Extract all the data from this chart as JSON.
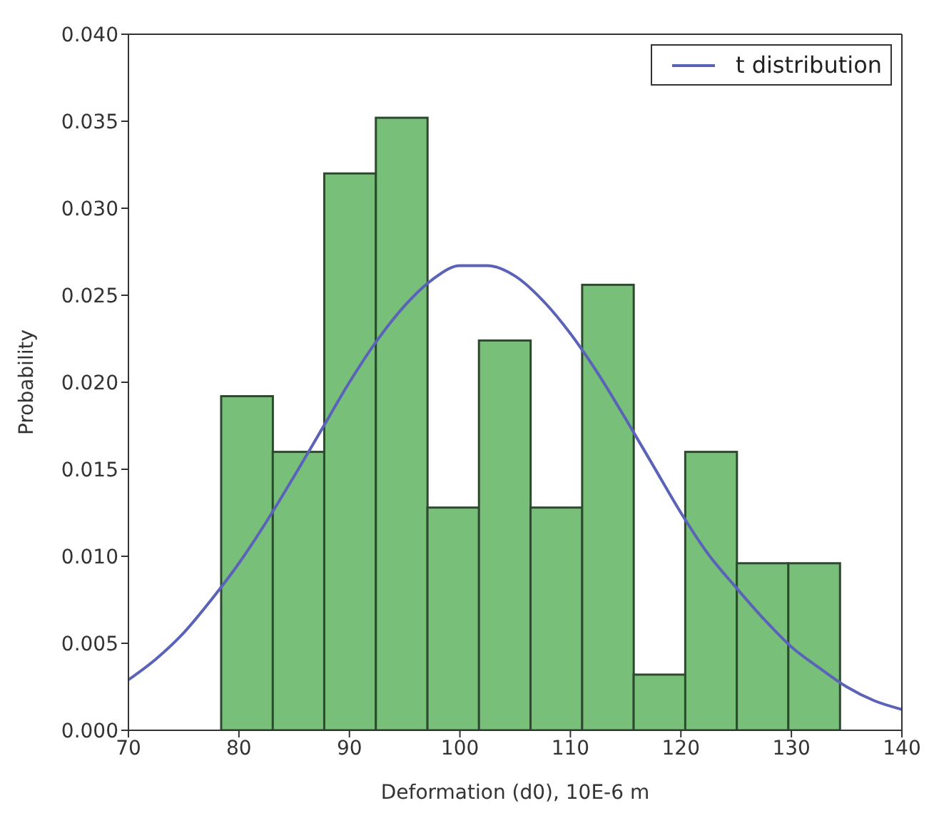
{
  "chart_data": {
    "type": "histogram",
    "xlabel": "Deformation (d0), 10E-6 m",
    "ylabel": "Probability",
    "xlim": [
      70,
      140
    ],
    "xticks": [
      70,
      80,
      90,
      100,
      110,
      120,
      130,
      140
    ],
    "ylim": [
      0,
      0.04
    ],
    "yticks": [
      {
        "value": 0,
        "label": "0.000"
      },
      {
        "value": 0.005,
        "label": "0.005"
      },
      {
        "value": 0.01,
        "label": "0.010"
      },
      {
        "value": 0.015,
        "label": "0.015"
      },
      {
        "value": 0.02,
        "label": "0.020"
      },
      {
        "value": 0.025,
        "label": "0.025"
      },
      {
        "value": 0.03,
        "label": "0.030"
      },
      {
        "value": 0.035,
        "label": "0.035"
      },
      {
        "value": 0.04,
        "label": "0.040"
      }
    ],
    "legend": "top right",
    "series": [
      {
        "type": "histogram",
        "color": "#78c07a",
        "bins": [
          78.4,
          83.07,
          87.73,
          92.4,
          97.07,
          101.73,
          106.4,
          111.07,
          115.73,
          120.4,
          125.07,
          129.73,
          134.4
        ],
        "values": [
          0.0192,
          0.016,
          0.032,
          0.0352,
          0.0128,
          0.0224,
          0.0128,
          0.0256,
          0.0032,
          0.016,
          0.0096,
          0.0096
        ]
      },
      {
        "type": "line",
        "name": "t distribution",
        "color": "#5b63b8",
        "marker": "none",
        "line_style": "solid",
        "x": [
          70,
          72.5,
          75,
          77.5,
          80,
          82.5,
          85,
          87.5,
          90,
          92.5,
          95,
          97.5,
          100,
          102.5,
          105,
          107.5,
          110,
          112.5,
          115,
          117.5,
          120,
          122.5,
          125,
          127.5,
          130,
          132.5,
          135,
          137.5,
          140
        ],
        "values": [
          0.0029,
          0.0041,
          0.0056,
          0.0075,
          0.0096,
          0.012,
          0.0146,
          0.0173,
          0.02,
          0.0224,
          0.0244,
          0.0259,
          0.0267,
          0.0267,
          0.0261,
          0.0247,
          0.0228,
          0.0205,
          0.0179,
          0.0152,
          0.0125,
          0.0101,
          0.0082,
          0.0064,
          0.0048,
          0.0036,
          0.0025,
          0.0017,
          0.0012
        ]
      }
    ]
  }
}
